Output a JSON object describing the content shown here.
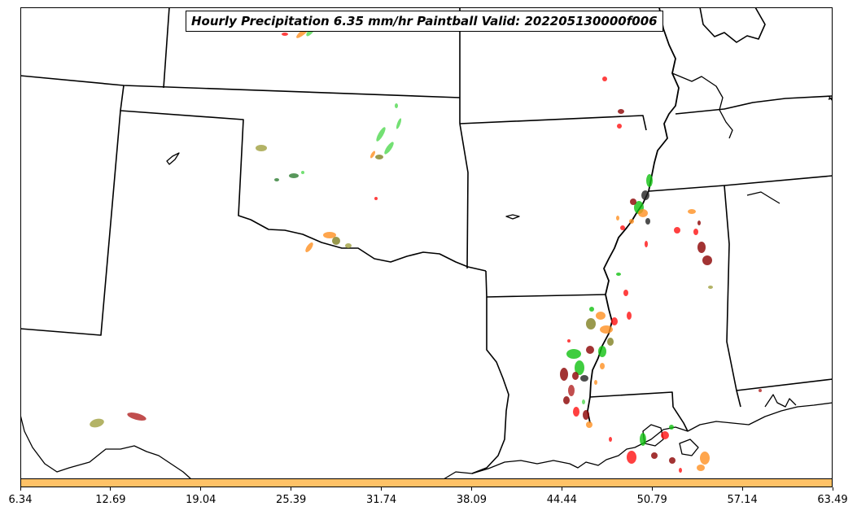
{
  "title": "Hourly Precipitation 6.35 mm/hr Paintball Valid: 202205130000f006",
  "colorbar": {
    "color": "#ffc267",
    "ticks": [
      "6.34",
      "12.69",
      "19.04",
      "25.39",
      "31.74",
      "38.09",
      "44.44",
      "50.79",
      "57.14",
      "63.49"
    ]
  },
  "colors": {
    "paint_red": "#ff1010",
    "paint_darkred": "#8b0000",
    "paint_green": "#10c010",
    "paint_lightgreen": "#50d850",
    "paint_orange": "#ff9020",
    "paint_olive": "#808020",
    "paint_darkgreen": "#2e7d32",
    "paint_khaki": "#a0a040",
    "paint_black": "#202020",
    "boundary": "#000000"
  }
}
